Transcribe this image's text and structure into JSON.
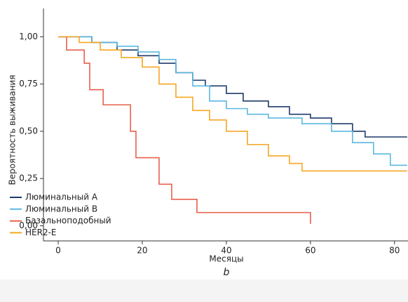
{
  "chart_data": {
    "type": "line",
    "x_label": "Месяцы",
    "y_label": "Вероятность выживания",
    "panel_label": "b",
    "xlim": [
      -3.5,
      83.2
    ],
    "ylim": [
      -0.08,
      1.15
    ],
    "xticks": [
      0,
      20,
      40,
      60,
      80
    ],
    "yticks": [
      {
        "value": 0,
        "label": "0,00"
      },
      {
        "value": 0.25,
        "label": "0,25"
      },
      {
        "value": 0.5,
        "label": "0,50"
      },
      {
        "value": 0.75,
        "label": "0,75"
      },
      {
        "value": 1,
        "label": "1,00"
      }
    ],
    "legend": "lower left",
    "series": [
      {
        "name": "Люминальный A",
        "color": "#1f3a6b",
        "x": [
          0,
          8,
          8,
          14,
          14,
          19,
          19,
          24,
          24,
          28,
          28,
          32,
          32,
          35,
          35,
          40,
          40,
          44,
          44,
          50,
          50,
          55,
          55,
          60,
          60,
          65,
          65,
          70,
          70,
          73,
          73,
          83
        ],
        "values": [
          1,
          1,
          0.97,
          0.97,
          0.93,
          0.93,
          0.9,
          0.9,
          0.86,
          0.86,
          0.81,
          0.81,
          0.77,
          0.77,
          0.74,
          0.74,
          0.7,
          0.7,
          0.66,
          0.66,
          0.63,
          0.63,
          0.59,
          0.59,
          0.57,
          0.57,
          0.54,
          0.54,
          0.5,
          0.5,
          0.47,
          0.47
        ]
      },
      {
        "name": "Люминальный B",
        "color": "#5bb8e0",
        "x": [
          0,
          8,
          8,
          14,
          14,
          19,
          19,
          24,
          24,
          28,
          28,
          32,
          32,
          36,
          36,
          40,
          40,
          45,
          45,
          50,
          50,
          58,
          58,
          65,
          65,
          70,
          70,
          75,
          75,
          79,
          79,
          83
        ],
        "values": [
          1,
          1,
          0.97,
          0.97,
          0.95,
          0.95,
          0.92,
          0.92,
          0.88,
          0.88,
          0.81,
          0.81,
          0.74,
          0.74,
          0.66,
          0.66,
          0.62,
          0.62,
          0.59,
          0.59,
          0.57,
          0.57,
          0.54,
          0.54,
          0.5,
          0.5,
          0.44,
          0.44,
          0.38,
          0.38,
          0.32,
          0.32
        ]
      },
      {
        "name": "Базальноподобный",
        "color": "#e8604c",
        "x": [
          0,
          2,
          2,
          6.2,
          6.2,
          7.5,
          7.5,
          10.7,
          10.7,
          17.2,
          17.2,
          18.5,
          18.5,
          24,
          24,
          27,
          27,
          33,
          33,
          60,
          60
        ],
        "values": [
          1,
          1,
          0.93,
          0.93,
          0.86,
          0.86,
          0.72,
          0.72,
          0.64,
          0.64,
          0.5,
          0.5,
          0.36,
          0.36,
          0.22,
          0.22,
          0.14,
          0.14,
          0.07,
          0.07,
          0.01
        ]
      },
      {
        "name": "HER2-E",
        "color": "#f5a623",
        "x": [
          0,
          5,
          5,
          10,
          10,
          15,
          15,
          20,
          20,
          24,
          24,
          28,
          28,
          32,
          32,
          36,
          36,
          40,
          40,
          45,
          45,
          50,
          50,
          55,
          55,
          58,
          58,
          83
        ],
        "values": [
          1,
          1,
          0.97,
          0.97,
          0.93,
          0.93,
          0.89,
          0.89,
          0.84,
          0.84,
          0.75,
          0.75,
          0.68,
          0.68,
          0.61,
          0.61,
          0.56,
          0.56,
          0.5,
          0.5,
          0.43,
          0.43,
          0.37,
          0.37,
          0.33,
          0.33,
          0.29,
          0.29
        ]
      }
    ]
  }
}
